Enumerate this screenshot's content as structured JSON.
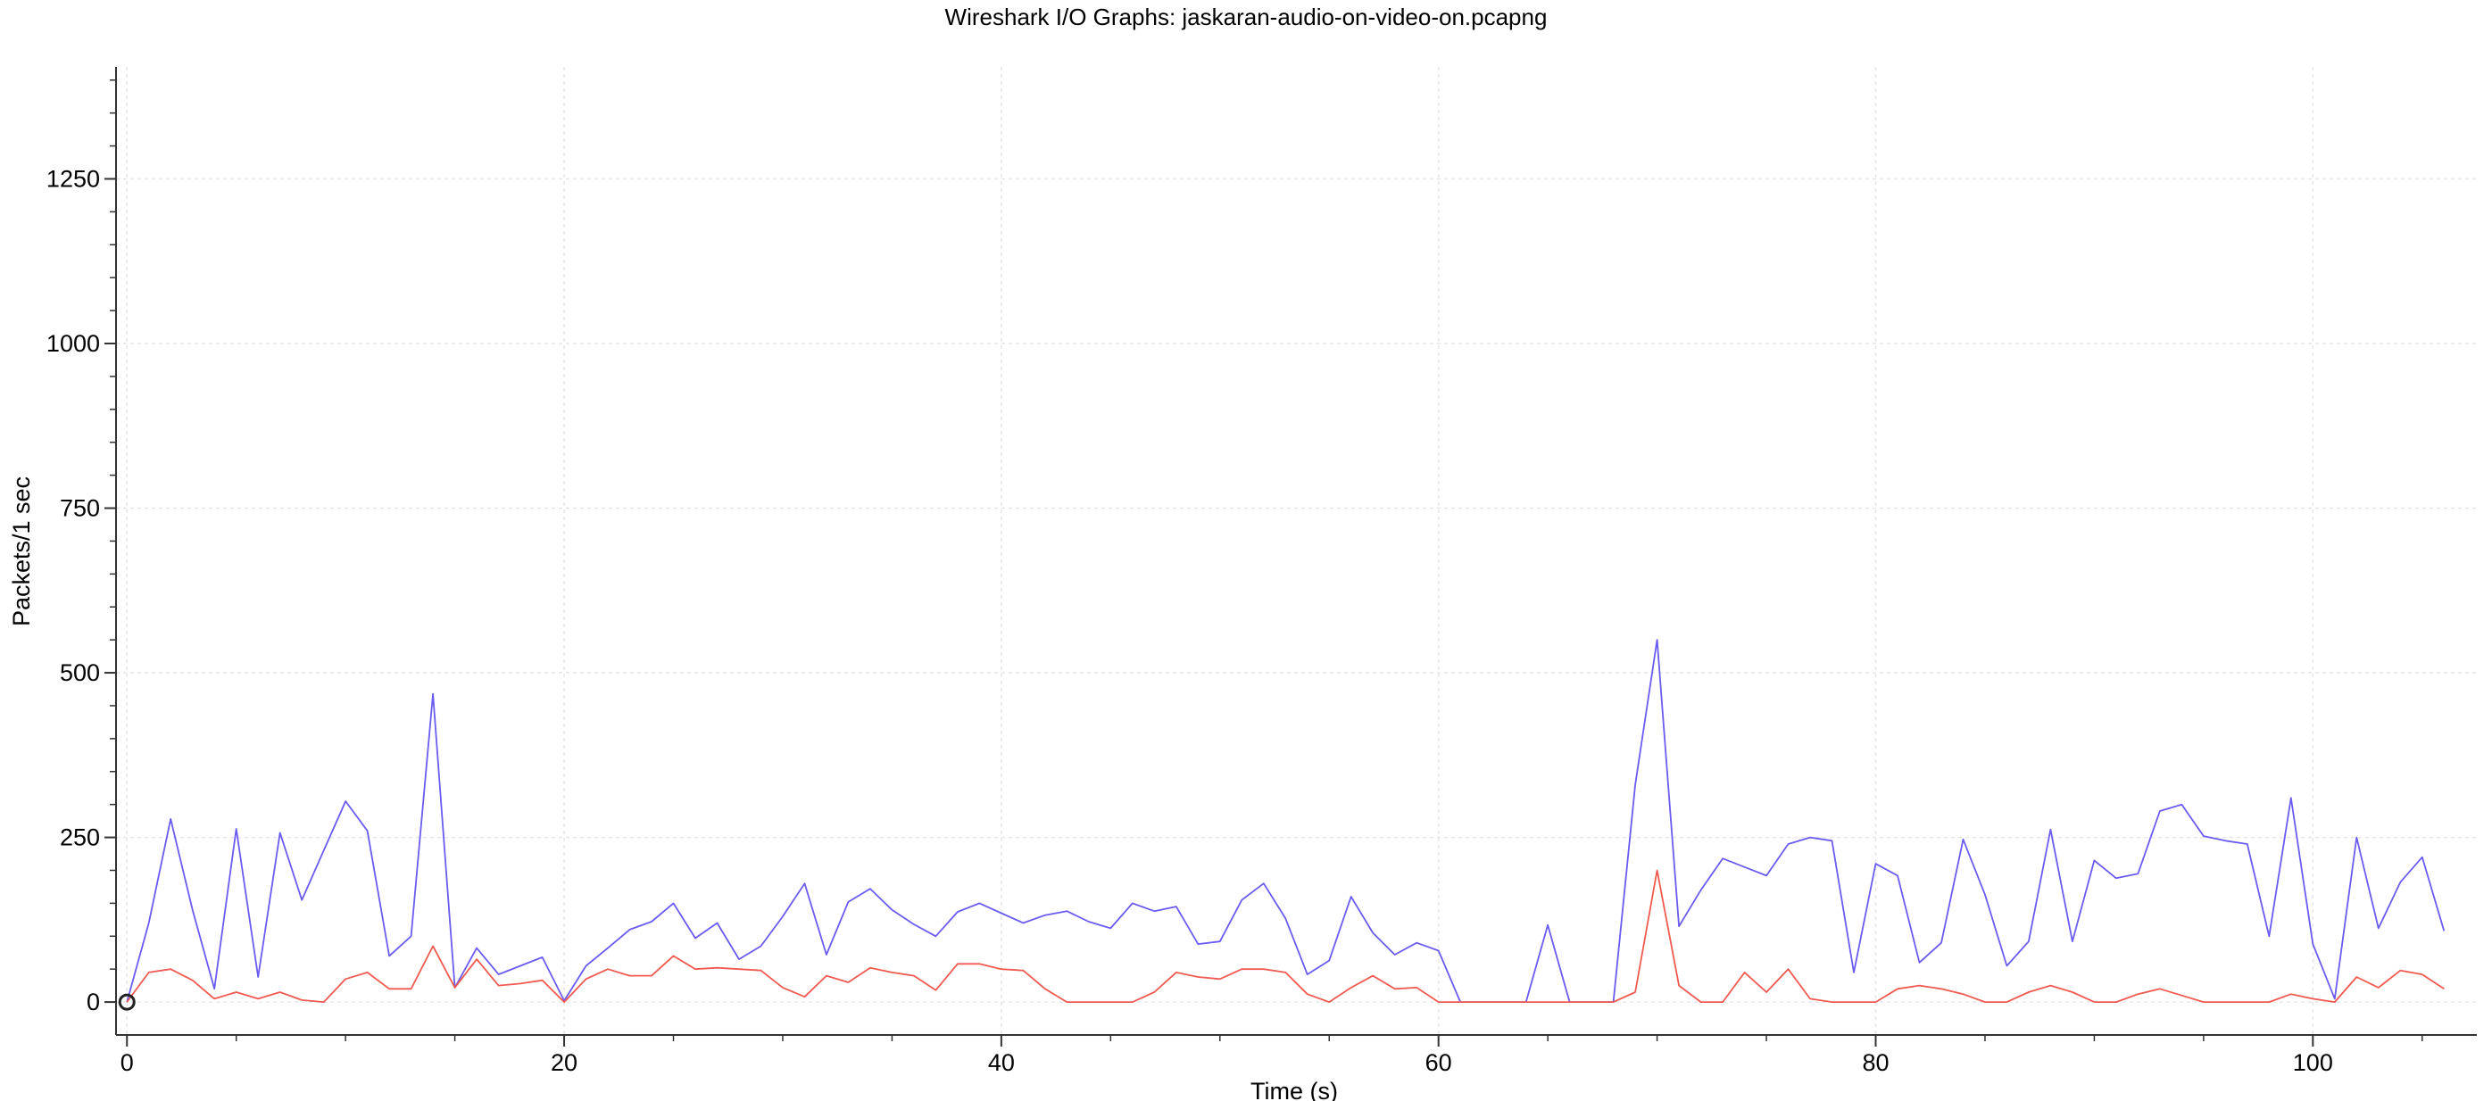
{
  "chart_data": {
    "type": "line",
    "title": "Wireshark I/O Graphs: jaskaran-audio-on-video-on.pcapng",
    "xlabel": "Time (s)",
    "ylabel": "Packets/1 sec",
    "xlim": [
      -0.5,
      107.5
    ],
    "ylim": [
      -50,
      1420
    ],
    "xticks": [
      0,
      20,
      40,
      60,
      80,
      100
    ],
    "yticks": [
      0,
      250,
      500,
      750,
      1000,
      1250
    ],
    "grid": true,
    "colors": {
      "series_0": "#6a5cf0",
      "series_1": "#f05a50"
    },
    "x": [
      0,
      1,
      2,
      3,
      4,
      5,
      6,
      7,
      8,
      9,
      10,
      11,
      12,
      13,
      14,
      15,
      16,
      17,
      18,
      19,
      20,
      21,
      22,
      23,
      24,
      25,
      26,
      27,
      28,
      29,
      30,
      31,
      32,
      33,
      34,
      35,
      36,
      37,
      38,
      39,
      40,
      41,
      42,
      43,
      44,
      45,
      46,
      47,
      48,
      49,
      50,
      51,
      52,
      53,
      54,
      55,
      56,
      57,
      58,
      59,
      60,
      61,
      62,
      63,
      64,
      65,
      66,
      67,
      68,
      69,
      70,
      71,
      72,
      73,
      74,
      75,
      76,
      77,
      78,
      79,
      80,
      81,
      82,
      83,
      84,
      85,
      86,
      87,
      88,
      89,
      90,
      91,
      92,
      93,
      94,
      95,
      96,
      97,
      98,
      99,
      100,
      101,
      102,
      103,
      104,
      105,
      106
    ],
    "series": [
      {
        "values": [
          0,
          120,
          278,
          140,
          20,
          263,
          38,
          257,
          155,
          230,
          305,
          260,
          70,
          100,
          468,
          22,
          82,
          42,
          55,
          68,
          2,
          55,
          82,
          110,
          122,
          150,
          97,
          120,
          65,
          85,
          130,
          180,
          72,
          152,
          172,
          140,
          118,
          100,
          137,
          150,
          135,
          120,
          132,
          138,
          122,
          112,
          150,
          138,
          145,
          88,
          92,
          155,
          180,
          127,
          42,
          63,
          160,
          105,
          72,
          90,
          78,
          0,
          0,
          0,
          0,
          117,
          0,
          0,
          0,
          330,
          550,
          115,
          170,
          218,
          205,
          192,
          240,
          250,
          245,
          45,
          210,
          192,
          60,
          90,
          247,
          163,
          55,
          92,
          262,
          92,
          215,
          188,
          195,
          290,
          300,
          252,
          245,
          240,
          100,
          310,
          88,
          5,
          250,
          112,
          182,
          220,
          108
        ]
      },
      {
        "values": [
          0,
          45,
          50,
          33,
          5,
          15,
          5,
          15,
          3,
          0,
          35,
          45,
          20,
          20,
          85,
          22,
          65,
          25,
          28,
          33,
          0,
          35,
          50,
          40,
          40,
          70,
          50,
          52,
          50,
          48,
          22,
          8,
          40,
          30,
          52,
          45,
          40,
          18,
          58,
          58,
          50,
          48,
          20,
          0,
          0,
          0,
          0,
          15,
          45,
          38,
          35,
          50,
          50,
          45,
          12,
          0,
          22,
          40,
          20,
          22,
          0,
          0,
          0,
          0,
          0,
          0,
          0,
          0,
          0,
          15,
          200,
          25,
          0,
          0,
          45,
          15,
          50,
          5,
          0,
          0,
          0,
          20,
          25,
          20,
          12,
          0,
          0,
          15,
          25,
          15,
          0,
          0,
          12,
          20,
          10,
          0,
          0,
          0,
          0,
          12,
          5,
          0,
          38,
          22,
          48,
          42,
          20
        ]
      }
    ]
  }
}
